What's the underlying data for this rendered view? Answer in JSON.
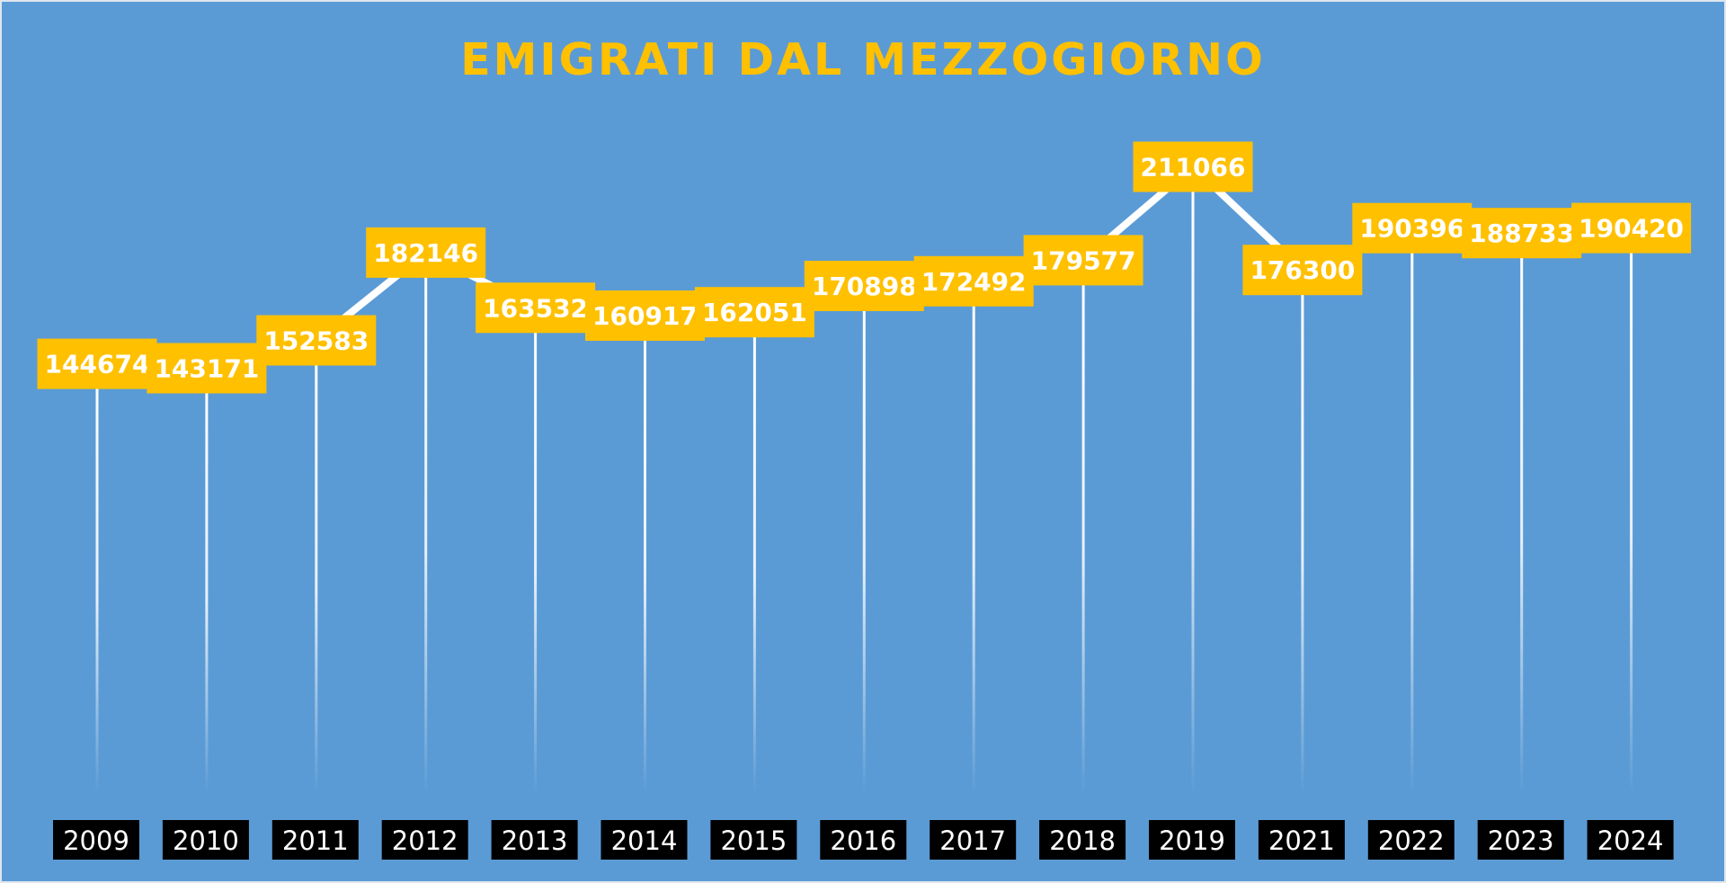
{
  "chart_data": {
    "type": "line",
    "title": "EMIGRATI DAL MEZZOGIORNO",
    "categories": [
      "2009",
      "2010",
      "2011",
      "2012",
      "2013",
      "2014",
      "2015",
      "2016",
      "2017",
      "2018",
      "2019",
      "2021",
      "2022",
      "2023",
      "2024"
    ],
    "series": [
      {
        "values": [
          144674,
          143171,
          152583,
          182146,
          163532,
          160917,
          162051,
          170898,
          172492,
          179577,
          211066,
          176300,
          190396,
          188733,
          190420
        ]
      }
    ],
    "data_labels": [
      "144674",
      "143171",
      "152583",
      "182146",
      "163532",
      "160917",
      "162051",
      "170898",
      "172492",
      "179577",
      "211066",
      "176300",
      "190396",
      "188733",
      "190420"
    ],
    "ylim": [
      0,
      260000
    ],
    "xlabel": "",
    "ylabel": "",
    "grid": false,
    "legend": "none",
    "drop_lines": true,
    "colors": {
      "background": "#5b9bd5",
      "line": "#ffffff",
      "label_fill": "#ffc000",
      "label_text": "#ffffff",
      "title": "#ffc000",
      "tick_fill": "#000000",
      "tick_text": "#ffffff"
    }
  }
}
